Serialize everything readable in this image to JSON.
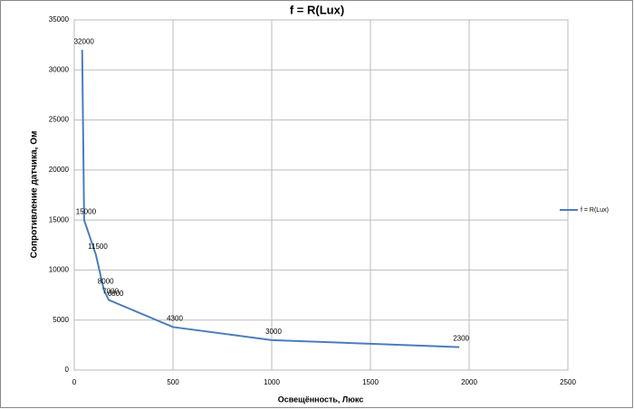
{
  "chart_data": {
    "type": "line",
    "title": "f = R(Lux)",
    "x_label": "Освещённость, Люкс",
    "y_label": "Сопротивление датчика, Ом",
    "x": [
      40,
      50,
      110,
      150,
      175,
      200,
      500,
      1000,
      1950
    ],
    "series": [
      {
        "name": "f = R(Lux)",
        "color": "#4a7ebb",
        "values": [
          32000,
          15000,
          11500,
          8000,
          7000,
          6800,
          4300,
          3000,
          2300
        ]
      }
    ],
    "xlim": [
      0,
      2500
    ],
    "xticks": [
      0,
      500,
      1000,
      1500,
      2000,
      2500
    ],
    "ylim": [
      0,
      35000
    ],
    "yticks": [
      0,
      5000,
      10000,
      15000,
      20000,
      25000,
      30000,
      35000
    ],
    "grid": true,
    "legend": "right"
  }
}
